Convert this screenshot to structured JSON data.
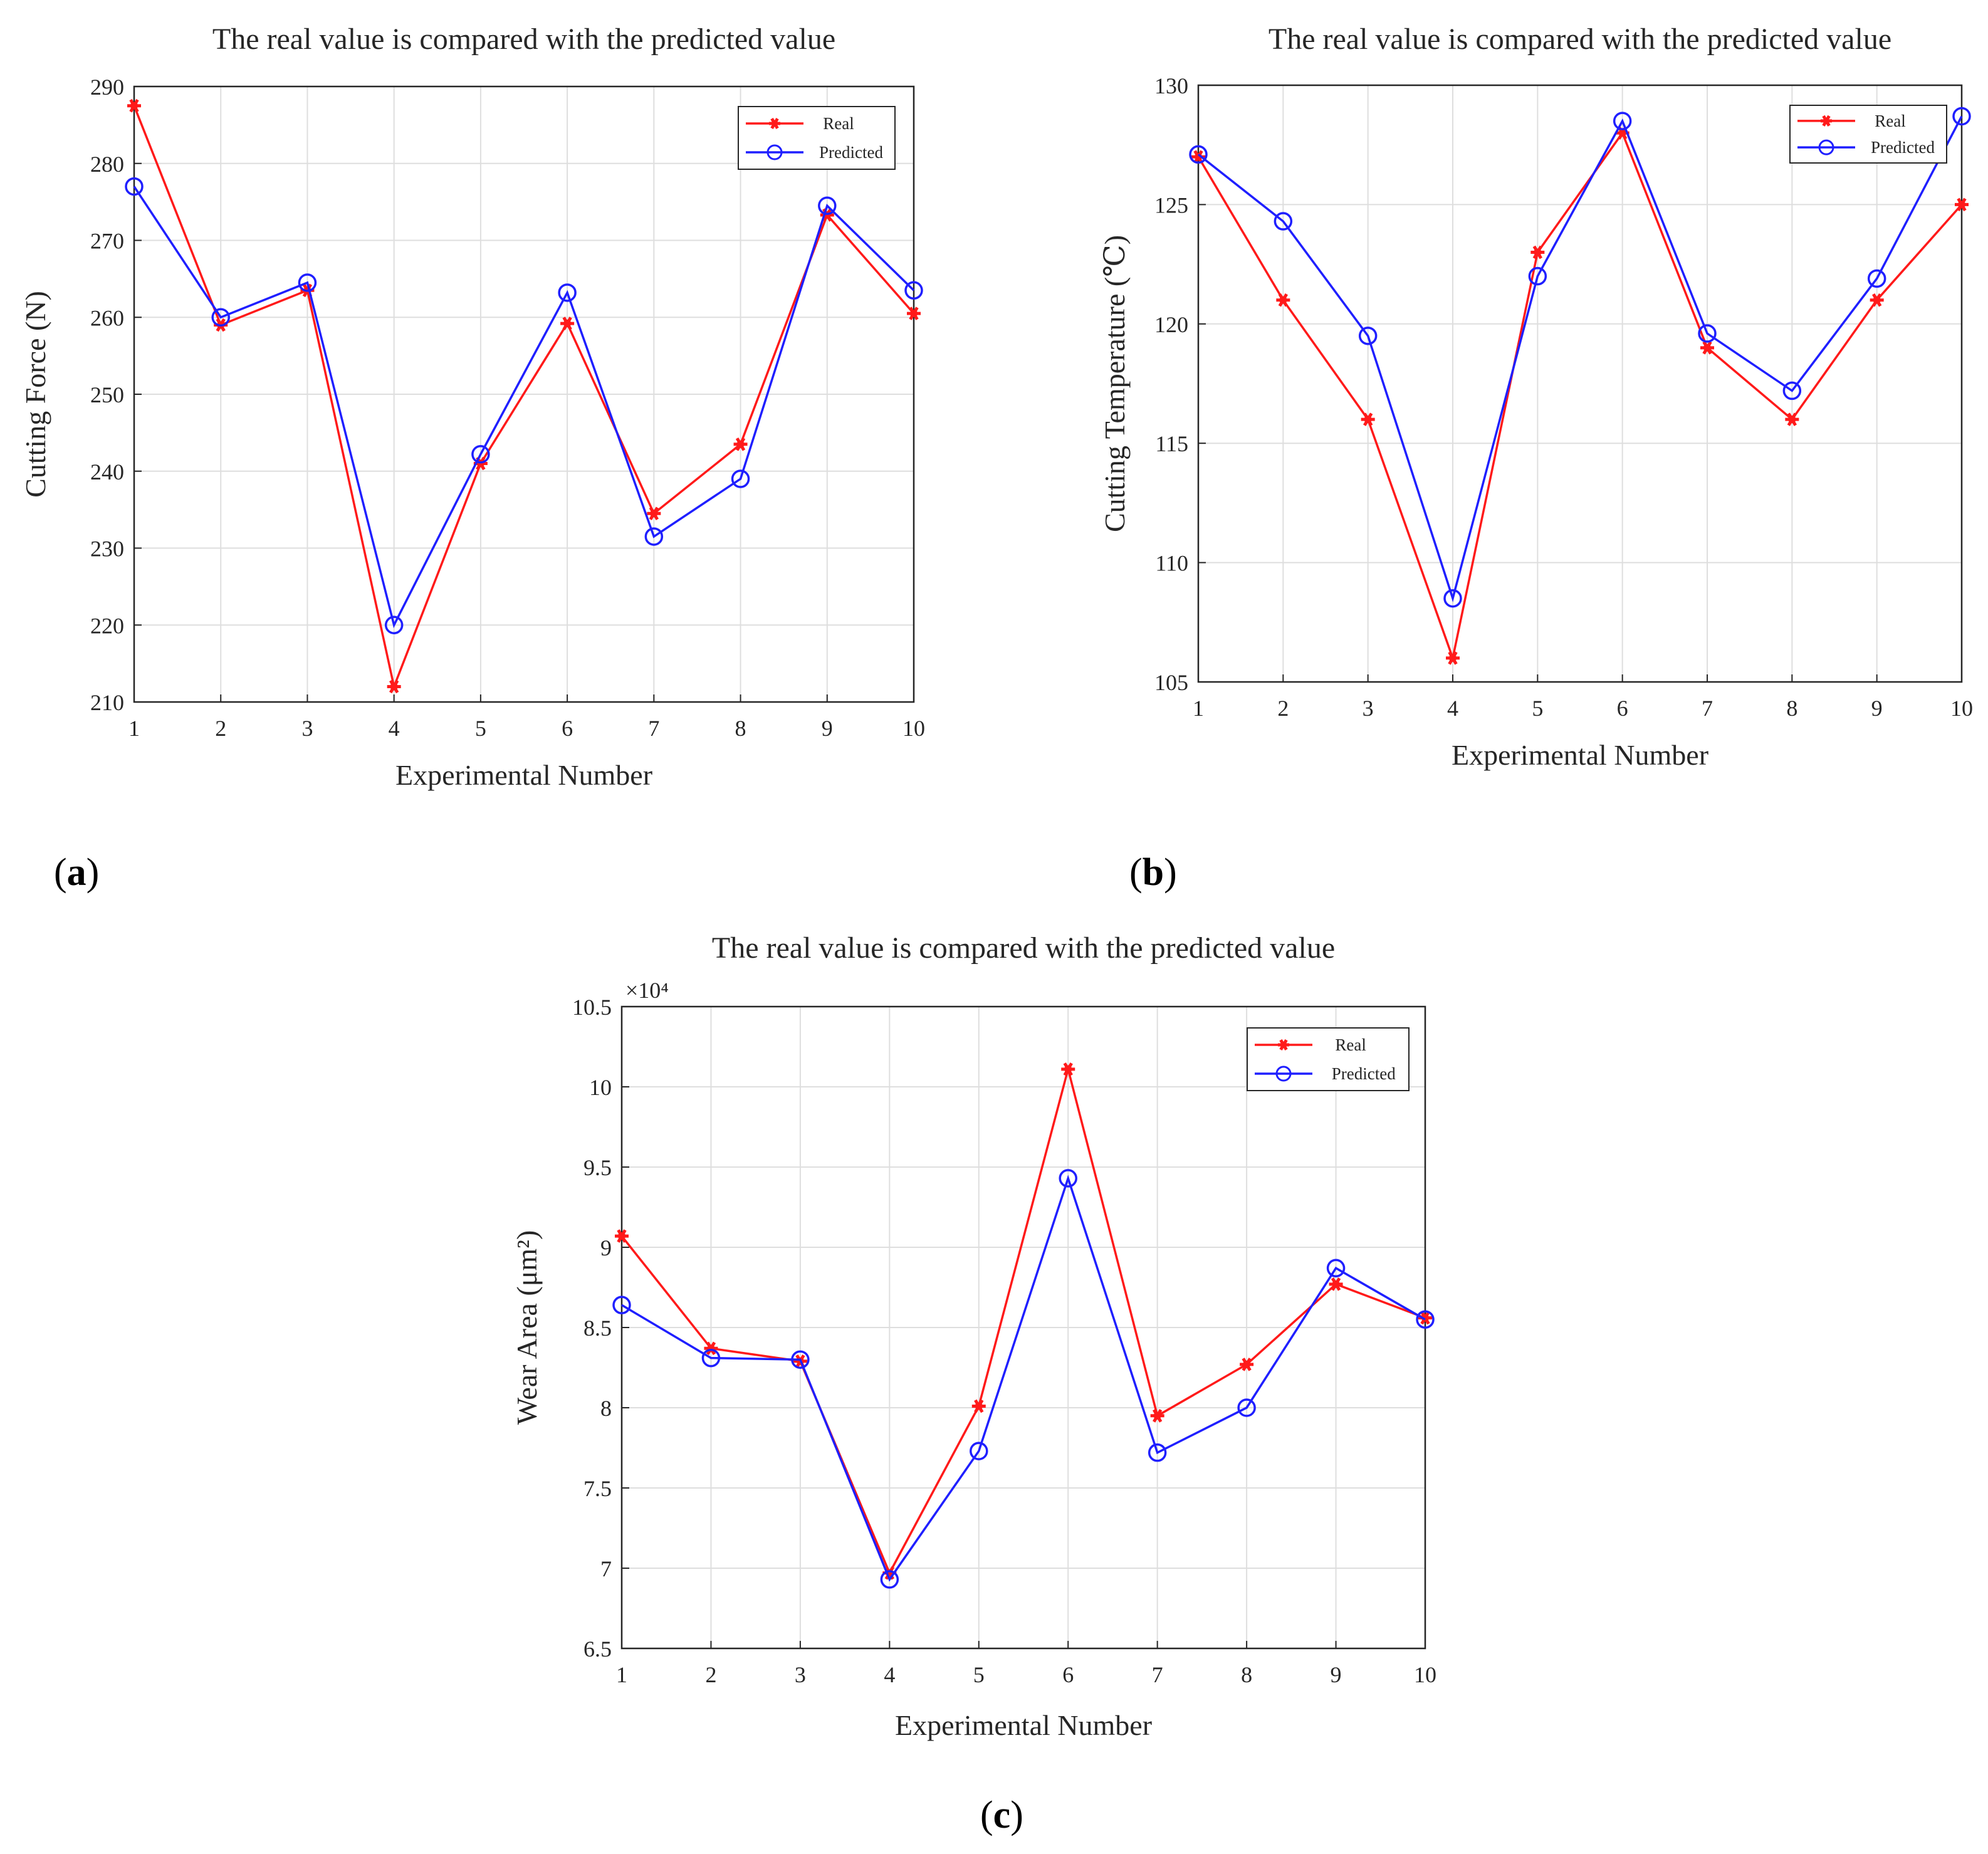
{
  "figure": {
    "panel_labels": [
      "a",
      "b",
      "c"
    ]
  },
  "colors": {
    "real": "#ff1a1a",
    "predicted": "#1f1fff"
  },
  "chart_data": [
    {
      "id": "a",
      "type": "line",
      "title": "The real value is compared with the predicted value",
      "xlabel": "Experimental Number",
      "ylabel": "Cutting Force (N)",
      "x": [
        1,
        2,
        3,
        4,
        5,
        6,
        7,
        8,
        9,
        10
      ],
      "xlim": [
        1,
        10
      ],
      "ylim": [
        210,
        290
      ],
      "yticks": [
        210,
        220,
        230,
        240,
        250,
        260,
        270,
        280,
        290
      ],
      "ytick_labels": [
        "210",
        "220",
        "230",
        "240",
        "250",
        "260",
        "270",
        "280",
        "290"
      ],
      "grid": true,
      "legend_position": "top-right",
      "series": [
        {
          "name": "Real",
          "marker": "star",
          "color": "#ff1a1a",
          "values": [
            287.5,
            259,
            263.5,
            212,
            241,
            259.2,
            234.5,
            243.5,
            273.3,
            260.5
          ]
        },
        {
          "name": "Predicted",
          "marker": "circle",
          "color": "#1f1fff",
          "values": [
            277,
            260,
            264.5,
            220,
            242.2,
            263.2,
            231.5,
            239,
            274.5,
            263.5
          ]
        }
      ]
    },
    {
      "id": "b",
      "type": "line",
      "title": "The real value is compared with the predicted value",
      "xlabel": "Experimental Number",
      "ylabel": "Cutting Temperature (℃)",
      "x": [
        1,
        2,
        3,
        4,
        5,
        6,
        7,
        8,
        9,
        10
      ],
      "xlim": [
        1,
        10
      ],
      "ylim": [
        105,
        130
      ],
      "yticks": [
        105,
        110,
        115,
        120,
        125,
        130
      ],
      "ytick_labels": [
        "105",
        "110",
        "115",
        "120",
        "125",
        "130"
      ],
      "grid": true,
      "legend_position": "top-right",
      "series": [
        {
          "name": "Real",
          "marker": "star",
          "color": "#ff1a1a",
          "values": [
            127,
            121,
            116,
            106,
            123,
            128,
            119,
            116,
            121,
            125
          ]
        },
        {
          "name": "Predicted",
          "marker": "circle",
          "color": "#1f1fff",
          "values": [
            127.1,
            124.3,
            119.5,
            108.5,
            122,
            128.5,
            119.6,
            117.2,
            121.9,
            128.7
          ]
        }
      ]
    },
    {
      "id": "c",
      "type": "line",
      "title": "The real value is compared with the predicted value",
      "xlabel": "Experimental Number",
      "ylabel": "Wear Area (μm²)",
      "y_exponent_label": "×10⁴",
      "x": [
        1,
        2,
        3,
        4,
        5,
        6,
        7,
        8,
        9,
        10
      ],
      "xlim": [
        1,
        10
      ],
      "ylim": [
        6.5,
        10.5
      ],
      "yticks": [
        6.5,
        7,
        7.5,
        8,
        8.5,
        9,
        9.5,
        10,
        10.5
      ],
      "ytick_labels": [
        "6.5",
        "7",
        "7.5",
        "8",
        "8.5",
        "9",
        "9.5",
        "10",
        "10.5"
      ],
      "grid": true,
      "legend_position": "top-right",
      "series": [
        {
          "name": "Real",
          "marker": "star",
          "color": "#ff1a1a",
          "values": [
            9.07,
            8.37,
            8.29,
            6.97,
            8.01,
            10.11,
            7.95,
            8.27,
            8.77,
            8.56
          ]
        },
        {
          "name": "Predicted",
          "marker": "circle",
          "color": "#1f1fff",
          "values": [
            8.64,
            8.31,
            8.3,
            6.93,
            7.73,
            9.43,
            7.72,
            8.0,
            8.87,
            8.55
          ]
        }
      ]
    }
  ]
}
